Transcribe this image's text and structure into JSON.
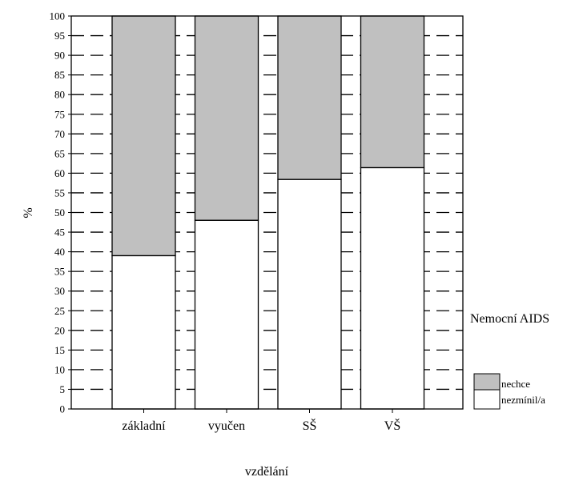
{
  "chart_data": {
    "type": "bar",
    "stacked": true,
    "percent_stacked": true,
    "categories": [
      "základní",
      "vyučen",
      "SŠ",
      "VŠ"
    ],
    "series": [
      {
        "name": "nezmínil/a",
        "values": [
          39,
          48,
          58.4,
          61.4
        ],
        "color": "#ffffff"
      },
      {
        "name": "nechce",
        "values": [
          61,
          52,
          41.6,
          38.6
        ],
        "color": "#c0c0c0"
      }
    ],
    "xlabel": "vzdělání",
    "ylabel": "%",
    "ylim": [
      0,
      100
    ],
    "yticks": [
      "0",
      "5",
      "10",
      "15",
      "20",
      "25",
      "30",
      "35",
      "40",
      "45",
      "50",
      "55",
      "60",
      "65",
      "70",
      "75",
      "80",
      "85",
      "90",
      "95",
      "100"
    ],
    "grid": "dashed horizontal",
    "legend": {
      "title": "Nemocní AIDS",
      "placement": "right",
      "items": [
        "nechce",
        "nezmínil/a"
      ]
    }
  }
}
